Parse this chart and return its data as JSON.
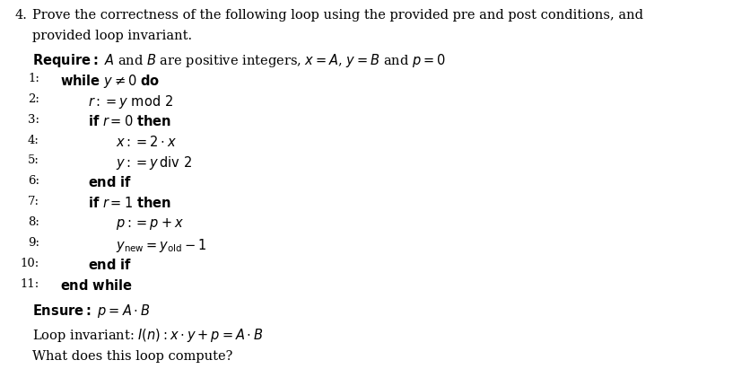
{
  "background_color": "#ffffff",
  "fig_width": 8.37,
  "fig_height": 4.11,
  "dpi": 100,
  "text_color": "#000000",
  "question_number": "4.",
  "question_text_line1": "Prove the correctness of the following loop using the provided pre and post conditions, and",
  "question_text_line2": "provided loop invariant.",
  "require_label": "Require:",
  "require_text": " $A$ and $B$ are positive integers, $x = A$, $y = B$ and $p = 0$",
  "lines": [
    {
      "num": "1:",
      "indent": 0,
      "text": "\\textbf{while} $y \\neq 0$ \\textbf{do}"
    },
    {
      "num": "2:",
      "indent": 1,
      "text": "$r := y \\;\\mathrm{mod}\\; 2$"
    },
    {
      "num": "3:",
      "indent": 1,
      "text": "\\textbf{if} $r = 0$ \\textbf{then}"
    },
    {
      "num": "4:",
      "indent": 2,
      "text": "$x := 2 \\cdot x$"
    },
    {
      "num": "5:",
      "indent": 2,
      "text": "$y := y\\,\\mathrm{div}\\; 2$"
    },
    {
      "num": "6:",
      "indent": 1,
      "text": "\\textbf{end if}"
    },
    {
      "num": "7:",
      "indent": 1,
      "text": "\\textbf{if} $r = 1$ \\textbf{then}"
    },
    {
      "num": "8:",
      "indent": 2,
      "text": "$p := p + x$"
    },
    {
      "num": "9:",
      "indent": 2,
      "text": "$y_{\\mathrm{new}} = y_{\\mathrm{old}} - 1$"
    },
    {
      "num": "10:",
      "indent": 1,
      "text": "\\textbf{end if}"
    },
    {
      "num": "11:",
      "indent": 0,
      "text": "\\textbf{end while}"
    }
  ],
  "ensure_label": "Ensure:",
  "ensure_text": " $p = A \\cdot B$",
  "loop_invariant_text": "Loop invariant: $I(n) : x \\cdot y + p = A \\cdot B$",
  "footer_text": "What does this loop compute?"
}
